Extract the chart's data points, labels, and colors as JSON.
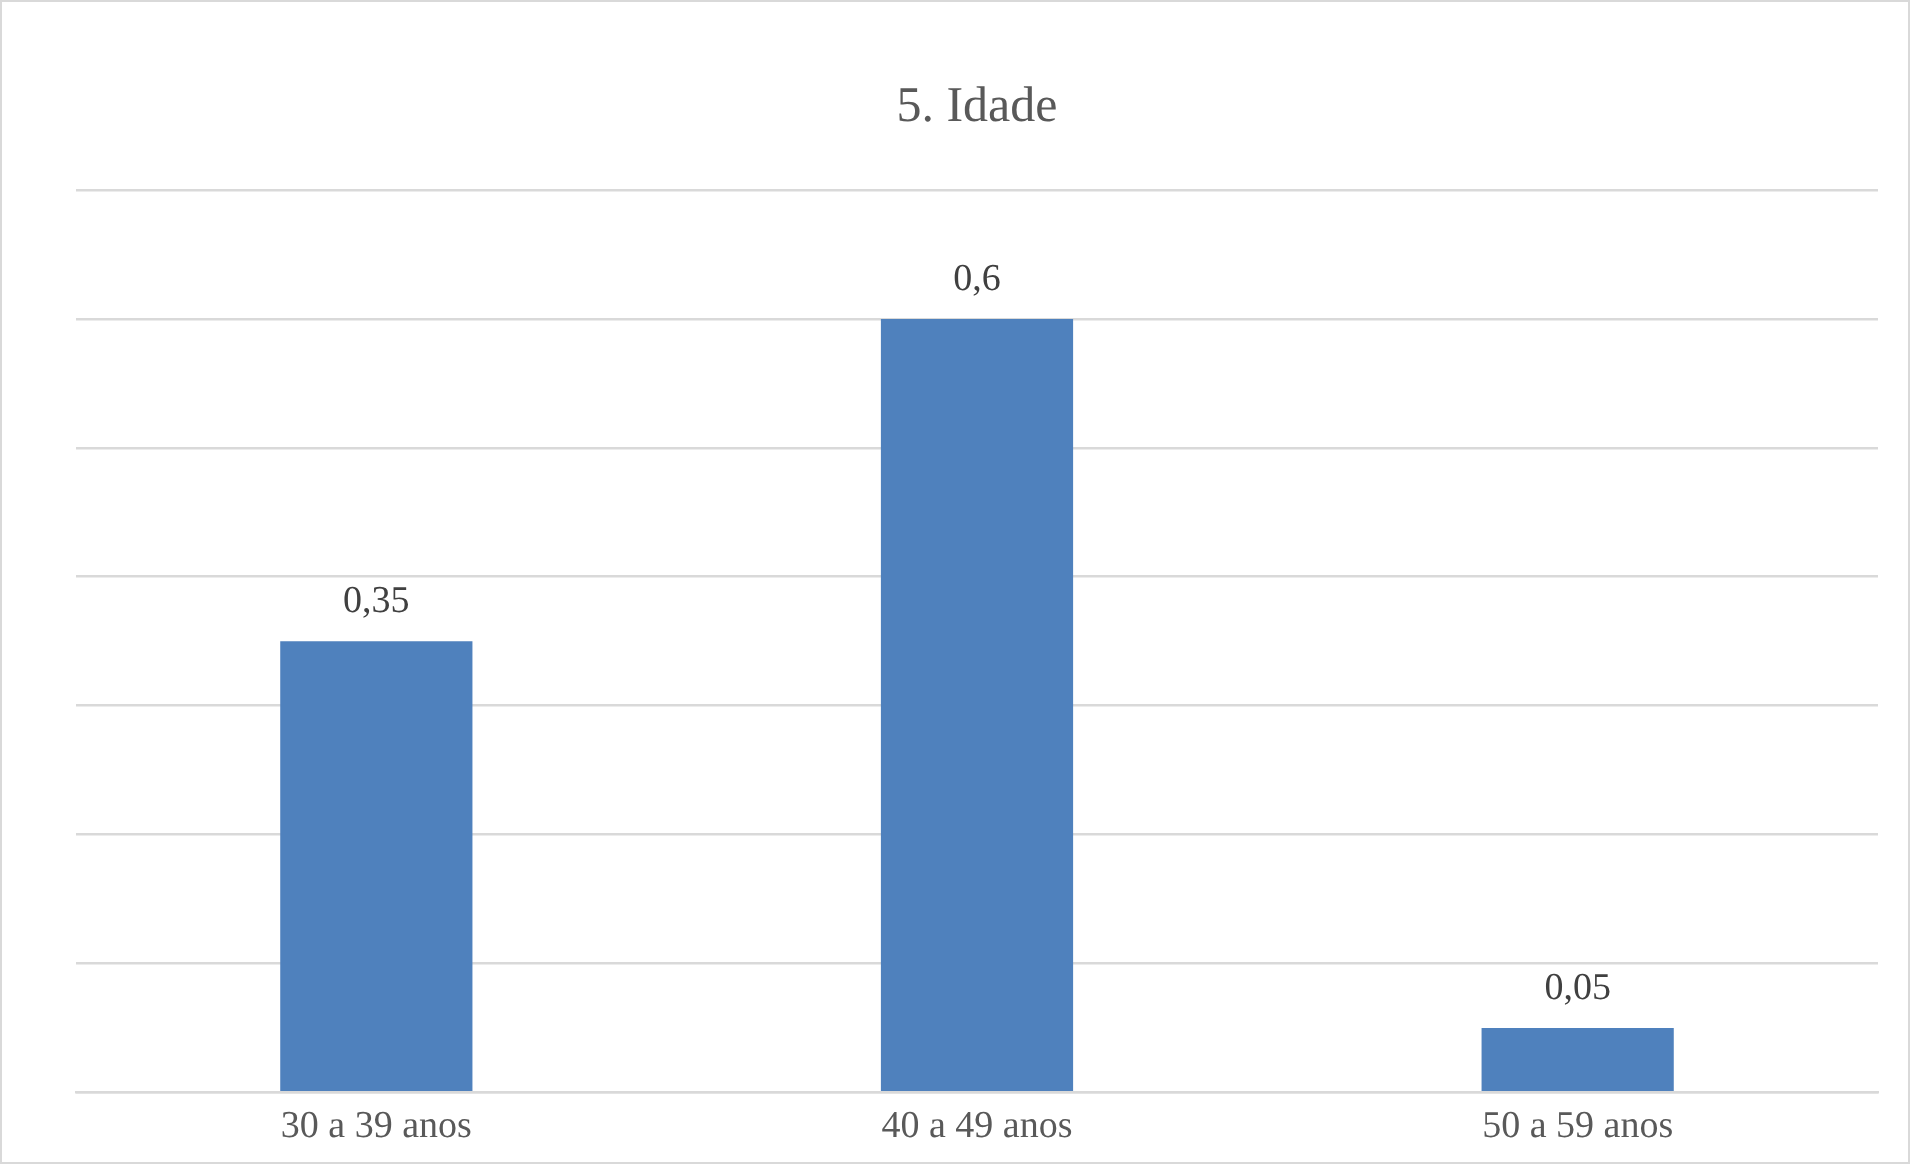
{
  "chart_data": {
    "type": "bar",
    "title": "5. Idade",
    "categories": [
      "30 a 39 anos",
      "40 a 49 anos",
      "50 a 59 anos"
    ],
    "values": [
      0.35,
      0.6,
      0.05
    ],
    "color": "#4f81bd",
    "value_labels": [
      "0,35",
      "0,6",
      "0,05"
    ],
    "ylim": [
      0,
      0.7
    ],
    "yticks": [
      {
        "value": 0,
        "label": null
      },
      {
        "value": 0.1,
        "label": null
      },
      {
        "value": 0.2,
        "label": null
      },
      {
        "value": 0.3,
        "label": null
      },
      {
        "value": 0.4,
        "label": null
      },
      {
        "value": 0.5,
        "label": null
      },
      {
        "value": 0.6,
        "label": null
      },
      {
        "value": 0.7,
        "label": null
      }
    ],
    "grid": "y",
    "tick_labels": "x",
    "legend": false
  }
}
